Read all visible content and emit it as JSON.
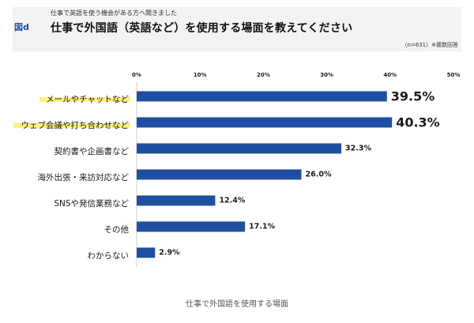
{
  "header": {
    "figure_label": "図d",
    "subtitle": "仕事で英語を使う機会がある方へ聞きました",
    "title": "仕事で外国語（英語など）を使用する場面を教えてください",
    "note": "（n=631）※複数回答"
  },
  "caption": "仕事で外国語を使用する場面",
  "colors": {
    "bar": "#1f4fa0",
    "highlight": "#fff27a",
    "axis": "#cfcfcf",
    "text": "#1a1a1a"
  },
  "chart_data": {
    "type": "bar",
    "orientation": "horizontal",
    "title": "仕事で外国語（英語など）を使用する場面を教えてください",
    "xlabel": "",
    "ylabel": "",
    "xlim": [
      0,
      50
    ],
    "ticks": [
      "0%",
      "10%",
      "20%",
      "30%",
      "40%",
      "50%"
    ],
    "grid": false,
    "categories": [
      "メールやチャットなど",
      "ウェブ会議や打ち合わせなど",
      "契約書や企画書など",
      "海外出張・来訪対応など",
      "SNSや発信業務など",
      "その他",
      "わからない"
    ],
    "values": [
      39.5,
      40.3,
      32.3,
      26.0,
      12.4,
      17.1,
      2.9
    ],
    "value_labels": [
      "39.5%",
      "40.3%",
      "32.3%",
      "26.0%",
      "12.4%",
      "17.1%",
      "2.9%"
    ],
    "highlighted": [
      true,
      true,
      false,
      false,
      false,
      false,
      false
    ]
  }
}
